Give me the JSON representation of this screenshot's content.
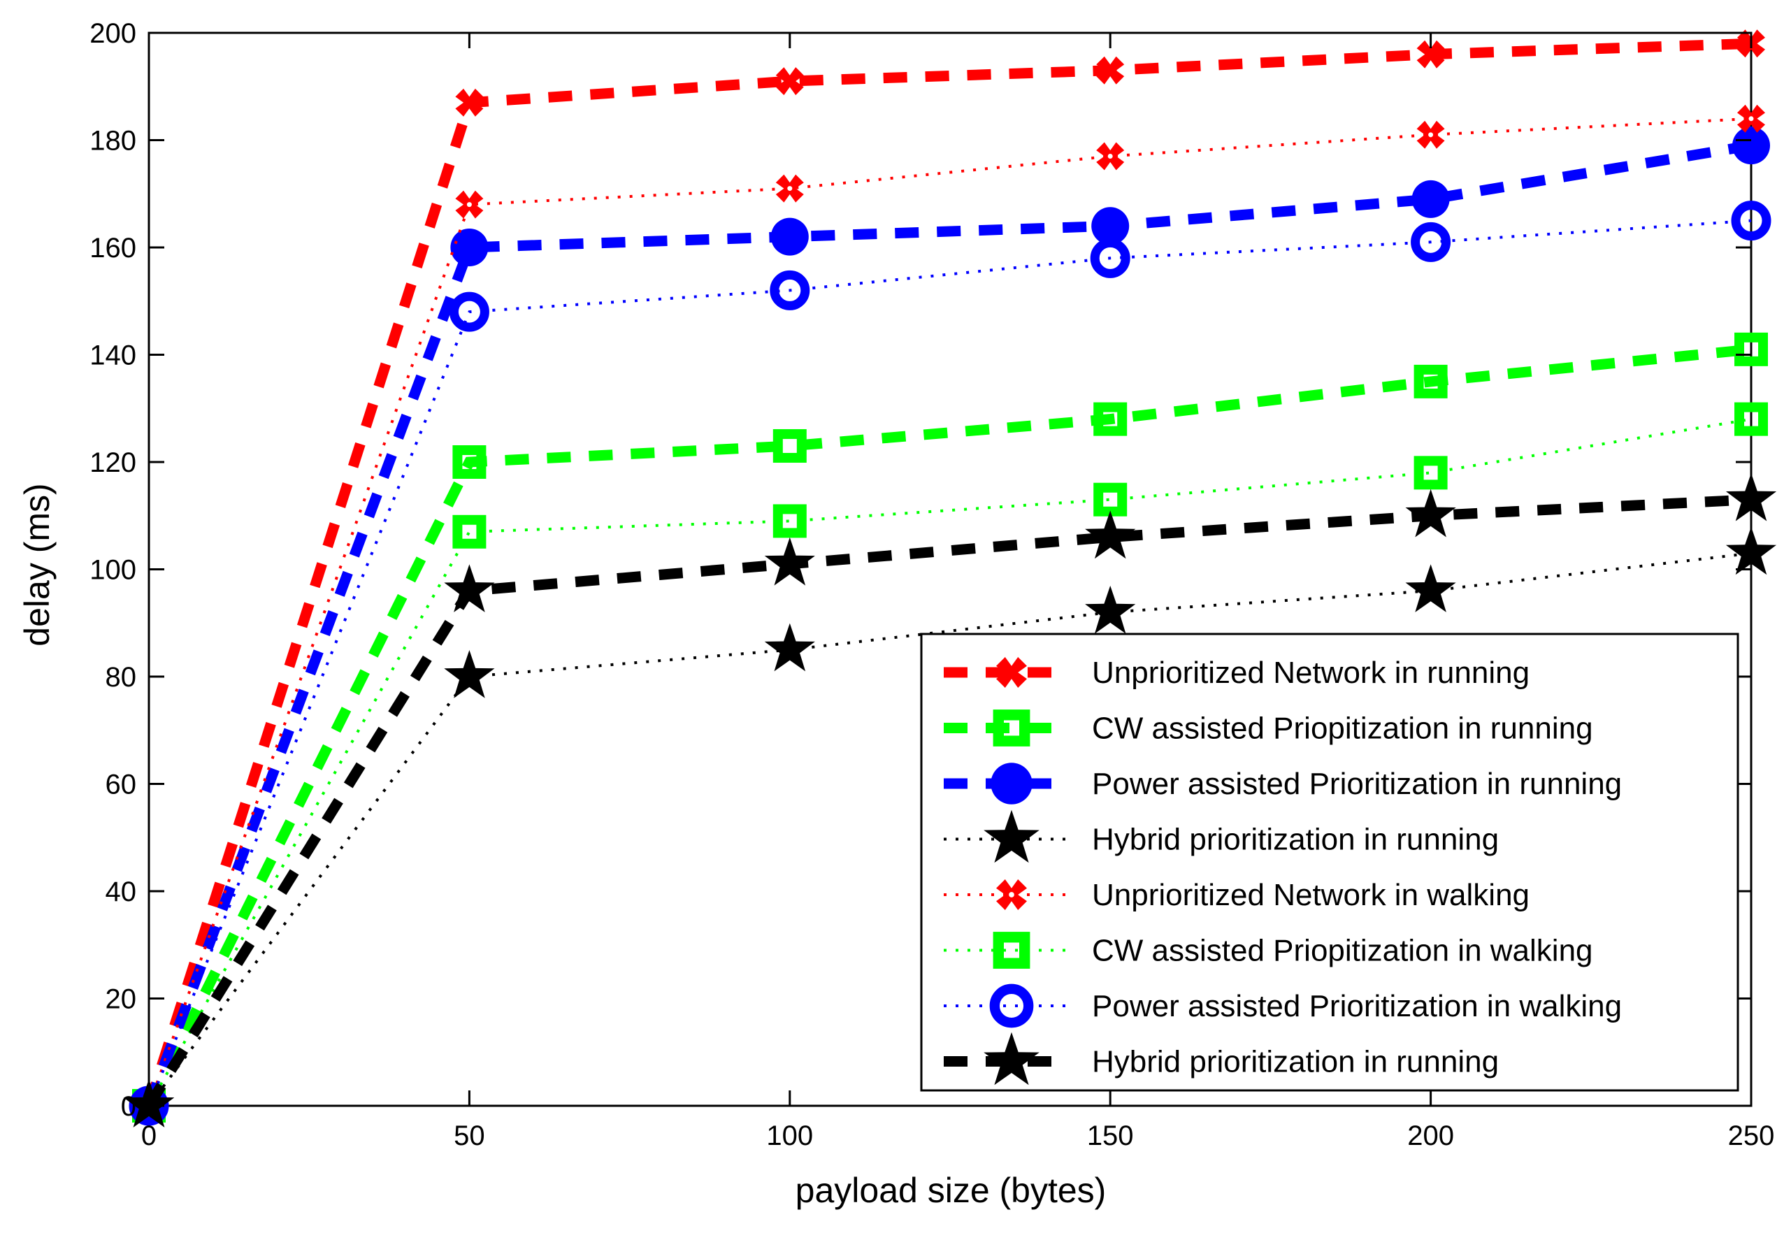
{
  "chart_data": {
    "type": "line",
    "title": "",
    "xlabel": "payload size (bytes)",
    "ylabel": "delay (ms)",
    "xlim": [
      0,
      250
    ],
    "ylim": [
      0,
      200
    ],
    "grid": false,
    "legend_position": "bottom-right",
    "x": [
      0,
      50,
      100,
      150,
      200,
      250
    ],
    "xticks": [
      0,
      50,
      100,
      150,
      200,
      250
    ],
    "yticks": [
      0,
      20,
      40,
      60,
      80,
      100,
      120,
      140,
      160,
      180,
      200
    ],
    "series": [
      {
        "name": " Unprioritized Network in running",
        "color": "#ff0000",
        "line": "dashed",
        "marker": "cross",
        "marker_style": "solid",
        "values": [
          0,
          187,
          191,
          193,
          196,
          198
        ]
      },
      {
        "name": "CW assisted Priopitization in running",
        "color": "#00ff00",
        "line": "dashed",
        "marker": "square",
        "marker_style": "hollow",
        "values": [
          0,
          120,
          123,
          128,
          135,
          141
        ]
      },
      {
        "name": "Power assisted Prioritization in running",
        "color": "#0000ff",
        "line": "dashed",
        "marker": "circle",
        "marker_style": "solid",
        "values": [
          0,
          160,
          162,
          164,
          169,
          179
        ]
      },
      {
        "name": "Hybrid prioritization in running",
        "color": "#000000",
        "line": "dotted",
        "marker": "star",
        "marker_style": "solid",
        "values": [
          0,
          80,
          85,
          92,
          96,
          103
        ]
      },
      {
        "name": " Unprioritized Network in walking",
        "color": "#ff0000",
        "line": "dotted",
        "marker": "cross",
        "marker_style": "hollow",
        "values": [
          0,
          168,
          171,
          177,
          181,
          184
        ]
      },
      {
        "name": "CW assisted Priopitization in walking",
        "color": "#00ff00",
        "line": "dotted",
        "marker": "square",
        "marker_style": "hollow",
        "values": [
          0,
          107,
          109,
          113,
          118,
          128
        ]
      },
      {
        "name": "Power assisted Prioritization in walking",
        "color": "#0000ff",
        "line": "dotted",
        "marker": "circle",
        "marker_style": "hollow",
        "values": [
          0,
          148,
          152,
          158,
          161,
          165
        ]
      },
      {
        "name": "Hybrid prioritization in running",
        "color": "#000000",
        "line": "dashed",
        "marker": "star",
        "marker_style": "solid",
        "values": [
          0,
          96,
          101,
          106,
          110,
          113
        ]
      }
    ]
  }
}
